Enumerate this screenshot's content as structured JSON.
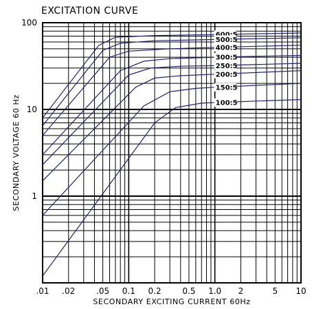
{
  "chart_data": {
    "type": "line",
    "title": "EXCITATION CURVE",
    "xlabel": "SECONDARY EXCITING CURRENT 60Hz",
    "ylabel": "SECONDARY VOLTAGE 60 Hz",
    "x_scale": "log",
    "y_scale": "log",
    "xlim": [
      0.01,
      10
    ],
    "ylim": [
      0.1,
      100
    ],
    "grid": true,
    "x_tick_labels": [
      ".01",
      ".02",
      ".05",
      "0.1",
      "0.2",
      "0.5",
      "1.0",
      "2",
      "5",
      "10"
    ],
    "x_tick_values": [
      0.01,
      0.02,
      0.05,
      0.1,
      0.2,
      0.5,
      1.0,
      2,
      5,
      10
    ],
    "y_tick_labels": [
      "1",
      "10",
      "100"
    ],
    "y_tick_values": [
      1,
      10,
      100
    ],
    "line_color": "#1f1f7a",
    "series": [
      {
        "name": "600:5",
        "points": [
          [
            0.01,
            8
          ],
          [
            0.045,
            55
          ],
          [
            0.07,
            68
          ],
          [
            0.2,
            71
          ],
          [
            1.0,
            73
          ],
          [
            10,
            76
          ]
        ]
      },
      {
        "name": "500:5",
        "points": [
          [
            0.01,
            6.5
          ],
          [
            0.05,
            48
          ],
          [
            0.08,
            58
          ],
          [
            0.2,
            62
          ],
          [
            1.0,
            64
          ],
          [
            10,
            67
          ]
        ]
      },
      {
        "name": "400:5",
        "points": [
          [
            0.01,
            5
          ],
          [
            0.06,
            40
          ],
          [
            0.1,
            47
          ],
          [
            0.3,
            50
          ],
          [
            1.0,
            52
          ],
          [
            10,
            55
          ]
        ]
      },
      {
        "name": "300:5",
        "points": [
          [
            0.01,
            3
          ],
          [
            0.08,
            28
          ],
          [
            0.15,
            36
          ],
          [
            0.3,
            38.5
          ],
          [
            1.0,
            40
          ],
          [
            10,
            42
          ]
        ]
      },
      {
        "name": "250:5",
        "points": [
          [
            0.01,
            2.3
          ],
          [
            0.1,
            25
          ],
          [
            0.18,
            30
          ],
          [
            0.4,
            31.5
          ],
          [
            1.0,
            32
          ],
          [
            10,
            34
          ]
        ]
      },
      {
        "name": "200:5",
        "points": [
          [
            0.01,
            1.5
          ],
          [
            0.12,
            18
          ],
          [
            0.2,
            23
          ],
          [
            0.4,
            24.5
          ],
          [
            1.0,
            25.5
          ],
          [
            10,
            28
          ]
        ]
      },
      {
        "name": "150:5",
        "points": [
          [
            0.01,
            0.6
          ],
          [
            0.15,
            11
          ],
          [
            0.3,
            16
          ],
          [
            0.6,
            17.5
          ],
          [
            1.0,
            18
          ],
          [
            10,
            20
          ]
        ]
      },
      {
        "name": "100:5",
        "points": [
          [
            0.01,
            0.12
          ],
          [
            0.2,
            7
          ],
          [
            0.35,
            10.5
          ],
          [
            0.7,
            11.8
          ],
          [
            1.0,
            12
          ],
          [
            10,
            13
          ]
        ]
      }
    ]
  }
}
